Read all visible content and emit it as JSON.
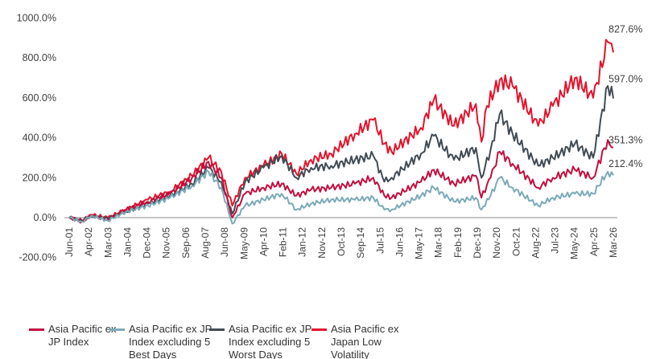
{
  "chart_data": {
    "type": "line",
    "title": "",
    "xlabel": "",
    "ylabel": "",
    "ylim": [
      -200,
      1000
    ],
    "yticks": [
      "-200.0%",
      "0.0%",
      "200.0%",
      "400.0%",
      "600.0%",
      "800.0%",
      "1000.0%"
    ],
    "ytick_values": [
      -200,
      0,
      200,
      400,
      600,
      800,
      1000
    ],
    "xlim": [
      "2001-06",
      "2026-03"
    ],
    "xticks": [
      "Jun-01",
      "Apr-02",
      "Mar-03",
      "Jan-04",
      "Dec-04",
      "Nov-05",
      "Sep-06",
      "Aug-07",
      "Jun-08",
      "May-09",
      "Apr-10",
      "Feb-11",
      "Jan-12",
      "Nov-12",
      "Oct-13",
      "Sep-14",
      "Jul-15",
      "Jun-16",
      "May-17",
      "Mar-18",
      "Feb-19",
      "Dec-19",
      "Nov-20",
      "Oct-21",
      "Aug-22",
      "Jul-23",
      "May-24",
      "Apr-25",
      "Mar-26"
    ],
    "grid": false,
    "legend_position": "bottom",
    "series": [
      {
        "name": "Asia Pacific ex JP Index",
        "color": "#c0103f",
        "end_label": "351.3%",
        "points": [
          [
            "2001-06",
            0
          ],
          [
            "2002-01",
            -20
          ],
          [
            "2002-06",
            10
          ],
          [
            "2003-03",
            -10
          ],
          [
            "2004-01",
            40
          ],
          [
            "2005-01",
            80
          ],
          [
            "2006-01",
            120
          ],
          [
            "2007-01",
            200
          ],
          [
            "2007-10",
            280
          ],
          [
            "2008-05",
            200
          ],
          [
            "2008-11",
            0
          ],
          [
            "2009-06",
            120
          ],
          [
            "2010-04",
            150
          ],
          [
            "2011-02",
            170
          ],
          [
            "2011-10",
            110
          ],
          [
            "2012-06",
            140
          ],
          [
            "2013-05",
            150
          ],
          [
            "2014-06",
            170
          ],
          [
            "2015-04",
            200
          ],
          [
            "2015-10",
            110
          ],
          [
            "2016-02",
            100
          ],
          [
            "2017-06",
            180
          ],
          [
            "2018-01",
            240
          ],
          [
            "2018-12",
            170
          ],
          [
            "2019-12",
            210
          ],
          [
            "2020-03",
            100
          ],
          [
            "2020-08",
            200
          ],
          [
            "2021-01",
            330
          ],
          [
            "2021-08",
            270
          ],
          [
            "2022-10",
            150
          ],
          [
            "2023-06",
            200
          ],
          [
            "2024-06",
            240
          ],
          [
            "2025-04",
            200
          ],
          [
            "2025-12",
            390
          ],
          [
            "2026-03",
            351.3
          ]
        ]
      },
      {
        "name": "Asia Pacific ex JP Index excluding 5 Best Days",
        "color": "#7aaab8",
        "end_label": "212.4%",
        "points": [
          [
            "2001-06",
            0
          ],
          [
            "2002-01",
            -20
          ],
          [
            "2002-06",
            10
          ],
          [
            "2003-03",
            -15
          ],
          [
            "2004-01",
            30
          ],
          [
            "2005-01",
            60
          ],
          [
            "2006-01",
            100
          ],
          [
            "2007-01",
            160
          ],
          [
            "2007-10",
            230
          ],
          [
            "2008-05",
            150
          ],
          [
            "2008-11",
            -30
          ],
          [
            "2009-06",
            60
          ],
          [
            "2010-04",
            90
          ],
          [
            "2011-02",
            120
          ],
          [
            "2011-10",
            40
          ],
          [
            "2012-06",
            70
          ],
          [
            "2013-05",
            90
          ],
          [
            "2014-06",
            90
          ],
          [
            "2015-04",
            100
          ],
          [
            "2015-10",
            40
          ],
          [
            "2016-02",
            40
          ],
          [
            "2017-06",
            110
          ],
          [
            "2018-01",
            150
          ],
          [
            "2018-12",
            80
          ],
          [
            "2019-12",
            100
          ],
          [
            "2020-03",
            40
          ],
          [
            "2020-08",
            110
          ],
          [
            "2021-01",
            200
          ],
          [
            "2021-08",
            150
          ],
          [
            "2022-10",
            60
          ],
          [
            "2023-06",
            100
          ],
          [
            "2024-06",
            120
          ],
          [
            "2025-04",
            120
          ],
          [
            "2025-12",
            230
          ],
          [
            "2026-03",
            212.4
          ]
        ]
      },
      {
        "name": "Asia Pacific ex JP Index excluding 5 Worst Days",
        "color": "#414b53",
        "end_label": "597.0%",
        "points": [
          [
            "2001-06",
            0
          ],
          [
            "2002-01",
            -15
          ],
          [
            "2002-06",
            10
          ],
          [
            "2003-03",
            -5
          ],
          [
            "2004-01",
            30
          ],
          [
            "2005-01",
            70
          ],
          [
            "2006-01",
            110
          ],
          [
            "2007-01",
            170
          ],
          [
            "2007-10",
            250
          ],
          [
            "2008-05",
            180
          ],
          [
            "2008-11",
            20
          ],
          [
            "2009-06",
            180
          ],
          [
            "2010-04",
            250
          ],
          [
            "2011-02",
            310
          ],
          [
            "2011-10",
            200
          ],
          [
            "2012-06",
            250
          ],
          [
            "2013-05",
            260
          ],
          [
            "2014-06",
            290
          ],
          [
            "2015-04",
            310
          ],
          [
            "2015-10",
            180
          ],
          [
            "2016-02",
            200
          ],
          [
            "2017-06",
            320
          ],
          [
            "2018-01",
            410
          ],
          [
            "2018-12",
            290
          ],
          [
            "2019-12",
            350
          ],
          [
            "2020-03",
            200
          ],
          [
            "2020-08",
            340
          ],
          [
            "2021-01",
            520
          ],
          [
            "2021-08",
            420
          ],
          [
            "2022-10",
            260
          ],
          [
            "2023-06",
            300
          ],
          [
            "2024-06",
            370
          ],
          [
            "2025-04",
            300
          ],
          [
            "2025-12",
            660
          ],
          [
            "2026-03",
            597.0
          ]
        ]
      },
      {
        "name": "Asia Pacific ex Japan Low Volatility",
        "color": "#e4132b",
        "end_label": "827.6%",
        "points": [
          [
            "2001-06",
            0
          ],
          [
            "2002-01",
            -15
          ],
          [
            "2002-06",
            15
          ],
          [
            "2003-03",
            0
          ],
          [
            "2004-01",
            40
          ],
          [
            "2005-01",
            90
          ],
          [
            "2006-01",
            130
          ],
          [
            "2007-01",
            210
          ],
          [
            "2007-10",
            300
          ],
          [
            "2008-05",
            230
          ],
          [
            "2008-11",
            60
          ],
          [
            "2009-06",
            200
          ],
          [
            "2010-04",
            260
          ],
          [
            "2011-02",
            320
          ],
          [
            "2011-10",
            220
          ],
          [
            "2012-06",
            290
          ],
          [
            "2013-05",
            320
          ],
          [
            "2014-06",
            420
          ],
          [
            "2015-04",
            490
          ],
          [
            "2015-10",
            370
          ],
          [
            "2016-02",
            330
          ],
          [
            "2017-06",
            450
          ],
          [
            "2018-01",
            590
          ],
          [
            "2018-12",
            460
          ],
          [
            "2019-12",
            570
          ],
          [
            "2020-03",
            380
          ],
          [
            "2020-06",
            560
          ],
          [
            "2021-01",
            690
          ],
          [
            "2021-08",
            660
          ],
          [
            "2022-10",
            460
          ],
          [
            "2023-06",
            560
          ],
          [
            "2024-06",
            700
          ],
          [
            "2025-04",
            600
          ],
          [
            "2025-12",
            880
          ],
          [
            "2026-03",
            827.6
          ]
        ]
      }
    ]
  }
}
